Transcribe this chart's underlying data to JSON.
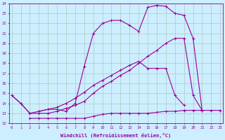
{
  "xlabel": "Windchill (Refroidissement éolien,°C)",
  "bg_color": "#cceeff",
  "grid_color": "#aaccbb",
  "line_color": "#990099",
  "xmin": 0,
  "xmax": 23,
  "ymin": 12,
  "ymax": 24,
  "curve1_x": [
    0,
    1,
    2,
    3,
    4,
    5,
    6,
    7,
    8,
    9,
    10,
    11,
    12,
    13,
    14,
    15,
    16,
    17,
    18,
    19,
    20,
    21
  ],
  "curve1_y": [
    14.8,
    14.0,
    13.0,
    13.2,
    13.4,
    13.4,
    13.2,
    14.0,
    17.7,
    21.0,
    22.0,
    22.3,
    22.3,
    21.8,
    21.2,
    23.6,
    23.8,
    23.7,
    23.0,
    22.8,
    20.5,
    13.3
  ],
  "curve2_x": [
    0,
    1,
    2,
    3,
    4,
    5,
    6,
    7,
    8,
    9,
    10,
    11,
    12,
    13,
    14,
    15,
    16,
    17,
    18,
    19,
    20,
    21,
    22,
    23
  ],
  "curve2_y": [
    14.8,
    14.0,
    13.0,
    13.0,
    13.0,
    13.2,
    13.5,
    13.8,
    14.2,
    15.0,
    15.7,
    16.2,
    16.8,
    17.3,
    18.0,
    18.7,
    19.3,
    20.0,
    20.5,
    20.5,
    14.8,
    13.3,
    null,
    null
  ],
  "curve3_x": [
    3,
    4,
    5,
    6,
    7,
    8,
    9,
    10,
    11,
    12,
    13,
    14,
    15,
    16,
    17,
    18,
    19,
    20,
    21,
    22,
    23
  ],
  "curve3_y": [
    13.2,
    13.4,
    13.6,
    14.0,
    14.5,
    15.1,
    15.8,
    16.3,
    16.8,
    17.3,
    17.8,
    18.2,
    17.5,
    17.5,
    17.5,
    14.8,
    13.8,
    null,
    null,
    null,
    13.3
  ],
  "curve4_x": [
    2,
    3,
    4,
    5,
    6,
    7,
    8,
    9,
    10,
    11,
    12,
    13,
    14,
    15,
    16,
    17,
    18,
    19,
    20,
    21,
    22,
    23
  ],
  "curve4_y": [
    12.5,
    12.5,
    12.5,
    12.5,
    12.5,
    12.5,
    12.5,
    12.7,
    12.9,
    13.0,
    13.0,
    13.0,
    13.0,
    13.0,
    13.1,
    13.2,
    13.2,
    13.3,
    13.3,
    13.3,
    13.3,
    13.3
  ]
}
